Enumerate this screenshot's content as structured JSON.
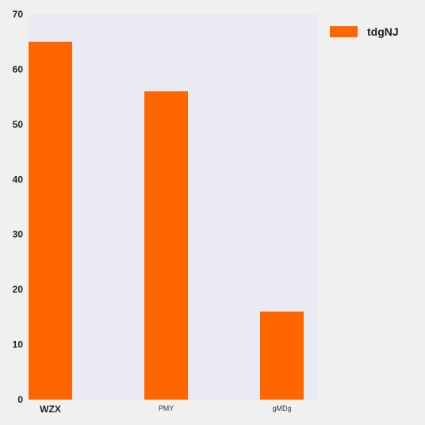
{
  "colors": {
    "background": "#f0f0f0",
    "plot_background": "#eaeaf2",
    "bar": "#ff6600"
  },
  "chart_data": {
    "type": "bar",
    "categories": [
      "WZX",
      "PMY",
      "gMDg"
    ],
    "series": [
      {
        "name": "tdgNJ",
        "values": [
          65,
          56,
          16
        ]
      }
    ],
    "ylim": [
      0,
      70
    ],
    "yticks": [
      0,
      10,
      20,
      30,
      40,
      50,
      60,
      70
    ],
    "title": "",
    "xlabel": "",
    "ylabel": "",
    "grid": false,
    "legend_position": "top-right"
  }
}
